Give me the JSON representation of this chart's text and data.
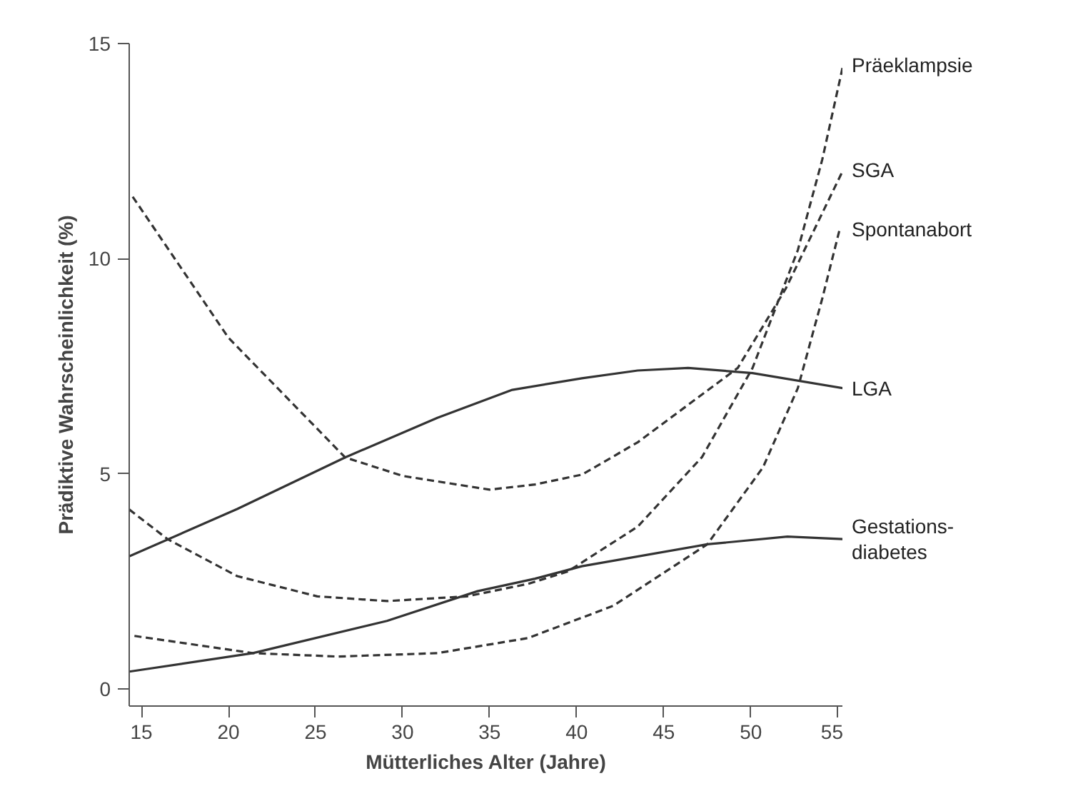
{
  "chart_data": {
    "type": "line",
    "xlabel": "Mütterliches Alter (Jahre)",
    "ylabel": "Prädiktive Wahrscheinlichkeit (%)",
    "xlim": [
      14.3,
      55.3
    ],
    "ylim": [
      -0.4,
      15
    ],
    "xticks": [
      15,
      20,
      25,
      30,
      35,
      40,
      45,
      50,
      55
    ],
    "yticks": [
      0,
      5,
      10,
      15
    ],
    "grid": false,
    "marker": "none",
    "series": [
      {
        "name": "Präeklampsie",
        "color": "#333333",
        "line_style": "dashed",
        "x": [
          14.3,
          16.5,
          20.5,
          25.1,
          29.1,
          33.7,
          37.2,
          39.5,
          43.5,
          47.2,
          50.1,
          52.7,
          54.1,
          55.3
        ],
        "values": [
          4.17,
          3.48,
          2.62,
          2.15,
          2.04,
          2.15,
          2.44,
          2.73,
          3.77,
          5.39,
          7.46,
          10.2,
          12.3,
          14.5
        ]
      },
      {
        "name": "SGA",
        "color": "#333333",
        "line_style": "dashed",
        "x": [
          14.5,
          20,
          26.7,
          30,
          35,
          37.6,
          40.3,
          43.5,
          49.25,
          52,
          55.3
        ],
        "values": [
          11.44,
          8.16,
          5.38,
          4.95,
          4.63,
          4.75,
          4.98,
          5.73,
          7.46,
          9.3,
          12.06
        ]
      },
      {
        "name": "Spontanabort",
        "color": "#333333",
        "line_style": "dashed",
        "x": [
          14.6,
          21.4,
          26.3,
          32,
          37.2,
          42.1,
          47.5,
          50.7,
          52.7,
          54.1,
          55.1
        ],
        "values": [
          1.23,
          0.83,
          0.75,
          0.83,
          1.18,
          1.93,
          3.36,
          5.15,
          6.99,
          9.07,
          10.68
        ]
      },
      {
        "name": "LGA",
        "color": "#333333",
        "line_style": "solid",
        "x": [
          14.3,
          20.5,
          26.7,
          32,
          36.3,
          40.3,
          43.5,
          46.4,
          50.1,
          55.3
        ],
        "values": [
          3.08,
          4.18,
          5.38,
          6.3,
          6.95,
          7.22,
          7.4,
          7.46,
          7.34,
          6.99
        ]
      },
      {
        "name": "Gestations-\ndiabetes",
        "color": "#333333",
        "line_style": "solid",
        "x": [
          14.3,
          21.4,
          29.1,
          34.3,
          37.6,
          40.3,
          47.5,
          52.1,
          55.3
        ],
        "values": [
          0.4,
          0.83,
          1.58,
          2.27,
          2.56,
          2.85,
          3.36,
          3.54,
          3.48
        ]
      }
    ]
  }
}
